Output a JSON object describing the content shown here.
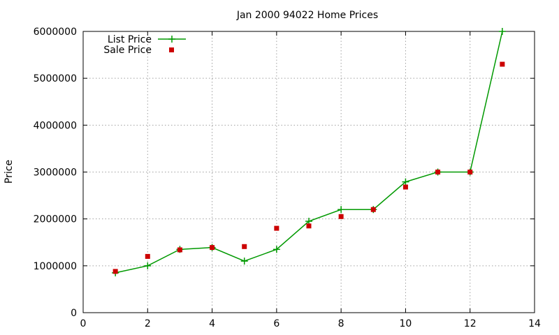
{
  "chart_data": {
    "type": "line",
    "title": "Jan 2000 94022 Home Prices",
    "xlabel": "",
    "ylabel": "Price",
    "xlim": [
      0,
      14
    ],
    "ylim": [
      0,
      6000000
    ],
    "x_ticks": [
      0,
      2,
      4,
      6,
      8,
      10,
      12,
      14
    ],
    "y_ticks": [
      0,
      1000000,
      2000000,
      3000000,
      4000000,
      5000000,
      6000000
    ],
    "grid": true,
    "legend_position": "top-left",
    "series": [
      {
        "name": "List Price",
        "style": "line-with-plus-markers",
        "color": "#009900",
        "x": [
          1,
          2,
          3,
          4,
          5,
          6,
          7,
          8,
          9,
          10,
          11,
          12,
          13
        ],
        "y": [
          850000,
          1000000,
          1350000,
          1390000,
          1100000,
          1350000,
          1950000,
          2200000,
          2200000,
          2790000,
          3000000,
          3000000,
          6000000
        ]
      },
      {
        "name": "Sale Price",
        "style": "square-markers",
        "color": "#cc0000",
        "x": [
          1,
          2,
          3,
          4,
          5,
          6,
          7,
          8,
          9,
          10,
          11,
          12,
          13
        ],
        "y": [
          880000,
          1200000,
          1340000,
          1390000,
          1410000,
          1800000,
          1850000,
          2050000,
          2200000,
          2680000,
          3000000,
          3000000,
          5300000
        ]
      }
    ]
  }
}
